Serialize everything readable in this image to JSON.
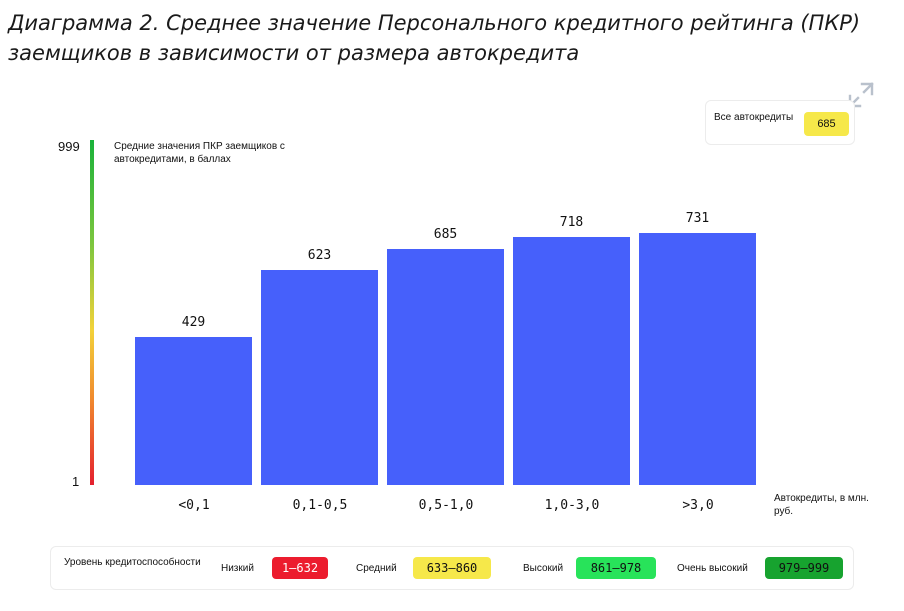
{
  "title": "Диаграмма 2. Среднее значение Персонального кредитного рейтинга (ПКР) заемщиков в зависимости от размера автокредита",
  "summary": {
    "label": "Все автокредиты",
    "value": "685",
    "badge_color": "#f6e84a"
  },
  "chart_data": {
    "type": "bar",
    "categories": [
      "<0,1",
      "0,1-0,5",
      "0,5-1,0",
      "1,0-3,0",
      ">3,0"
    ],
    "values": [
      429,
      623,
      685,
      718,
      731
    ],
    "ylabel": "Средние значения ПКР заемщиков с автокредитами, в баллах",
    "xlabel": "Автокредиты, в млн. руб.",
    "ylim": [
      1,
      999
    ],
    "y_ticks": [
      "999",
      "1"
    ],
    "bar_color": "#4660fb",
    "grid": false
  },
  "legend": {
    "title": "Уровень кредитоспособности",
    "items": [
      {
        "label": "Низкий",
        "range": "1–632",
        "color": "#ec1c2e",
        "text_color": "#ffffff"
      },
      {
        "label": "Средний",
        "range": "633–860",
        "color": "#f6e84a",
        "text_color": "#111111"
      },
      {
        "label": "Высокий",
        "range": "861–978",
        "color": "#28e35a",
        "text_color": "#111111"
      },
      {
        "label": "Очень высокий",
        "range": "979–999",
        "color": "#17a32f",
        "text_color": "#111111"
      }
    ]
  },
  "icons": {
    "expand": "expand-icon"
  }
}
